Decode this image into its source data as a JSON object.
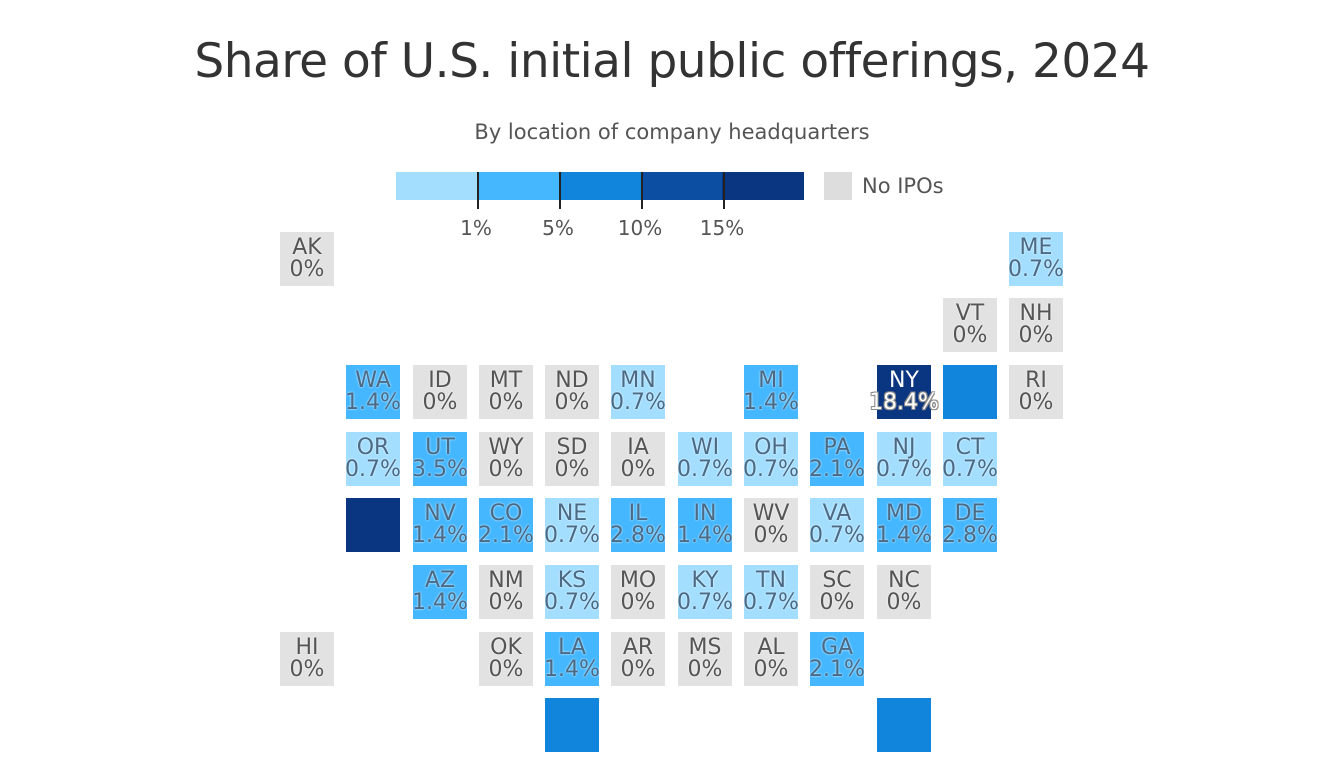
{
  "header": {
    "title": "Share of U.S. initial public offerings, 2024",
    "subtitle": "By location of company headquarters"
  },
  "legend": {
    "colors": [
      "#a3deff",
      "#45b7ff",
      "#1184dc",
      "#0b4ea2",
      "#0a3580"
    ],
    "ticks": [
      "1%",
      "5%",
      "10%",
      "15%"
    ],
    "no_ipo_label": "No IPOs",
    "no_ipo_color": "#dddddd"
  },
  "states": [
    {
      "abbr": "AK",
      "value": "0%",
      "cls": "c0"
    },
    {
      "abbr": "ME",
      "value": "0.7%",
      "cls": "c1"
    },
    {
      "abbr": "VT",
      "value": "0%",
      "cls": "c0"
    },
    {
      "abbr": "NH",
      "value": "0%",
      "cls": "c0"
    },
    {
      "abbr": "WA",
      "value": "1.4%",
      "cls": "c2"
    },
    {
      "abbr": "ID",
      "value": "0%",
      "cls": "c0"
    },
    {
      "abbr": "MT",
      "value": "0%",
      "cls": "c0"
    },
    {
      "abbr": "ND",
      "value": "0%",
      "cls": "c0"
    },
    {
      "abbr": "MN",
      "value": "0.7%",
      "cls": "c1"
    },
    {
      "abbr": "MI",
      "value": "1.4%",
      "cls": "c2"
    },
    {
      "abbr": "NY",
      "value": "18.4%",
      "cls": "c5"
    },
    {
      "abbr": "",
      "value": "",
      "cls": "c3"
    },
    {
      "abbr": "RI",
      "value": "0%",
      "cls": "c0"
    },
    {
      "abbr": "OR",
      "value": "0.7%",
      "cls": "c1"
    },
    {
      "abbr": "UT",
      "value": "3.5%",
      "cls": "c2"
    },
    {
      "abbr": "WY",
      "value": "0%",
      "cls": "c0"
    },
    {
      "abbr": "SD",
      "value": "0%",
      "cls": "c0"
    },
    {
      "abbr": "IA",
      "value": "0%",
      "cls": "c0"
    },
    {
      "abbr": "WI",
      "value": "0.7%",
      "cls": "c1"
    },
    {
      "abbr": "OH",
      "value": "0.7%",
      "cls": "c1"
    },
    {
      "abbr": "PA",
      "value": "2.1%",
      "cls": "c2"
    },
    {
      "abbr": "NJ",
      "value": "0.7%",
      "cls": "c1"
    },
    {
      "abbr": "CT",
      "value": "0.7%",
      "cls": "c1"
    },
    {
      "abbr": "",
      "value": "",
      "cls": "c5"
    },
    {
      "abbr": "NV",
      "value": "1.4%",
      "cls": "c2"
    },
    {
      "abbr": "CO",
      "value": "2.1%",
      "cls": "c2"
    },
    {
      "abbr": "NE",
      "value": "0.7%",
      "cls": "c1"
    },
    {
      "abbr": "IL",
      "value": "2.8%",
      "cls": "c2"
    },
    {
      "abbr": "IN",
      "value": "1.4%",
      "cls": "c2"
    },
    {
      "abbr": "WV",
      "value": "0%",
      "cls": "c0"
    },
    {
      "abbr": "VA",
      "value": "0.7%",
      "cls": "c1"
    },
    {
      "abbr": "MD",
      "value": "1.4%",
      "cls": "c2"
    },
    {
      "abbr": "DE",
      "value": "2.8%",
      "cls": "c2"
    },
    {
      "abbr": "AZ",
      "value": "1.4%",
      "cls": "c2"
    },
    {
      "abbr": "NM",
      "value": "0%",
      "cls": "c0"
    },
    {
      "abbr": "KS",
      "value": "0.7%",
      "cls": "c1"
    },
    {
      "abbr": "MO",
      "value": "0%",
      "cls": "c0"
    },
    {
      "abbr": "KY",
      "value": "0.7%",
      "cls": "c1"
    },
    {
      "abbr": "TN",
      "value": "0.7%",
      "cls": "c1"
    },
    {
      "abbr": "SC",
      "value": "0%",
      "cls": "c0"
    },
    {
      "abbr": "NC",
      "value": "0%",
      "cls": "c0"
    },
    {
      "abbr": "HI",
      "value": "0%",
      "cls": "c0"
    },
    {
      "abbr": "OK",
      "value": "0%",
      "cls": "c0"
    },
    {
      "abbr": "LA",
      "value": "1.4%",
      "cls": "c2"
    },
    {
      "abbr": "AR",
      "value": "0%",
      "cls": "c0"
    },
    {
      "abbr": "MS",
      "value": "0%",
      "cls": "c0"
    },
    {
      "abbr": "AL",
      "value": "0%",
      "cls": "c0"
    },
    {
      "abbr": "GA",
      "value": "2.1%",
      "cls": "c2"
    },
    {
      "abbr": "",
      "value": "",
      "cls": "c3"
    },
    {
      "abbr": "",
      "value": "",
      "cls": "c3"
    }
  ]
}
